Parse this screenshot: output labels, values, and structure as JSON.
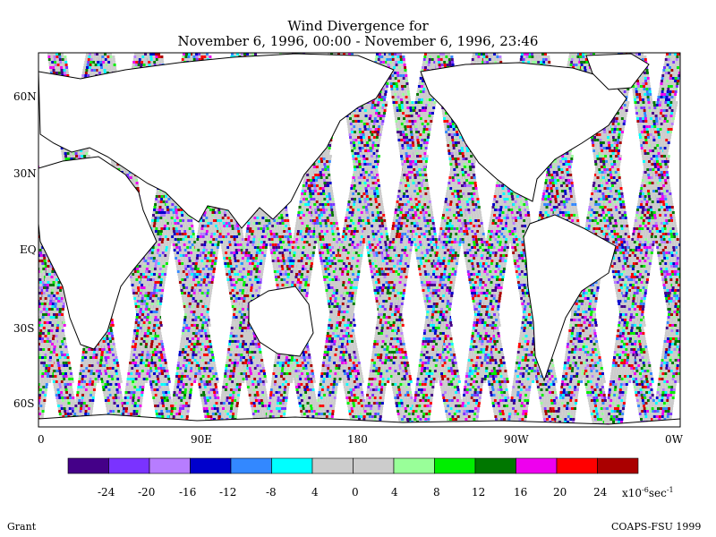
{
  "title": {
    "line1": "Wind Divergence for",
    "line2": "November 6, 1996, 00:00 - November 6, 1996, 23:46"
  },
  "map": {
    "lat_labels": [
      "60N",
      "30N",
      "EQ",
      "30S",
      "60S"
    ],
    "lon_labels": [
      "0",
      "90E",
      "180",
      "90W",
      "0W"
    ],
    "land_color": "#ffffff",
    "no_divergence_color": "#cccccc"
  },
  "colorbar": {
    "colors": [
      "#440088",
      "#7a33ff",
      "#b77dff",
      "#0000cc",
      "#3388ff",
      "#00ffff",
      "#cccccc",
      "#cccccc",
      "#99ff99",
      "#00ee00",
      "#007700",
      "#ee00ee",
      "#ff0000",
      "#aa0000"
    ],
    "tick_labels": [
      "-24",
      "-20",
      "-16",
      "-12",
      "-8",
      "4",
      "0",
      "4",
      "8",
      "12",
      "16",
      "20",
      "24"
    ],
    "unit_main": "x10",
    "unit_exp": "-6",
    "unit_tail": "sec",
    "unit_exp2": "-1"
  },
  "footer": {
    "left": "Grant",
    "right": "COAPS-FSU 1999"
  }
}
